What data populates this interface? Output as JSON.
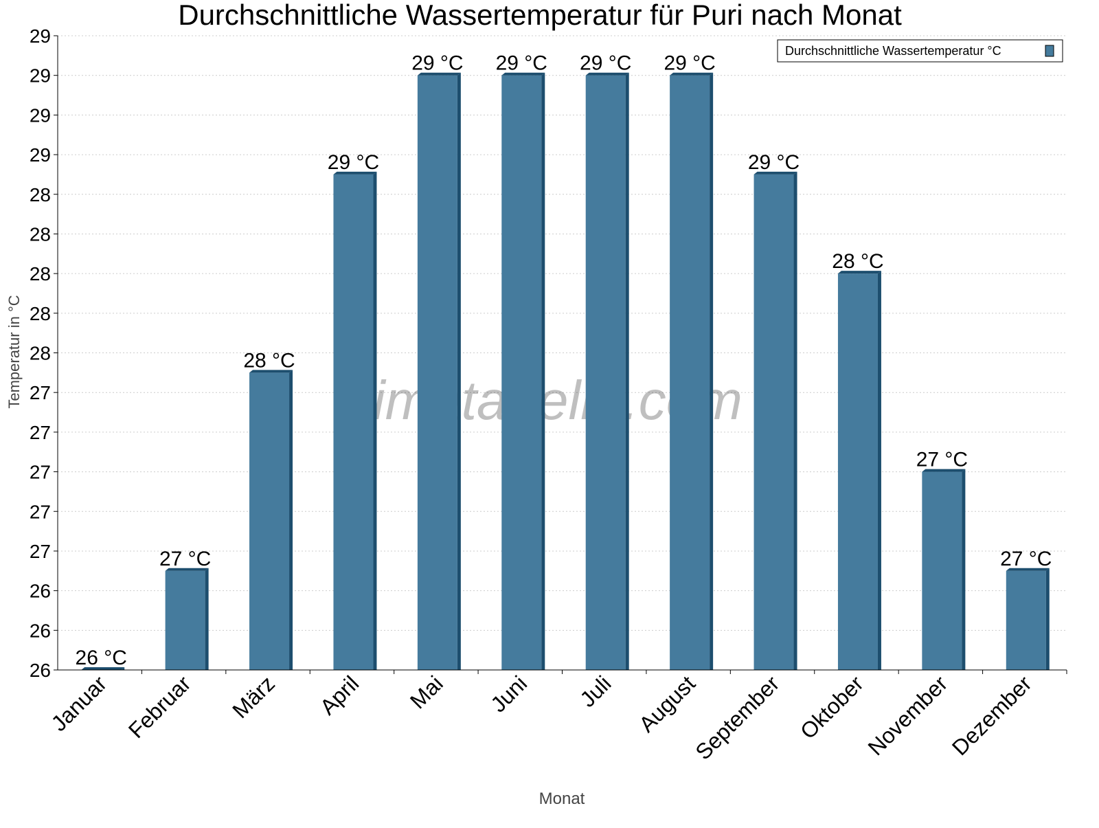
{
  "chart_data": {
    "type": "bar",
    "title": "Durchschnittliche Wassertemperatur für Puri nach Monat",
    "xlabel": "Monat",
    "ylabel": "Temperatur in °C",
    "categories": [
      "Januar",
      "Februar",
      "März",
      "April",
      "Mai",
      "Juni",
      "Juli",
      "August",
      "September",
      "Oktober",
      "November",
      "Dezember"
    ],
    "series": [
      {
        "name": "Durchschnittliche Wassertemperatur °C",
        "values": [
          26.0,
          26.5,
          27.5,
          28.5,
          29.0,
          29.0,
          29.0,
          29.0,
          28.5,
          28.0,
          27.0,
          26.5
        ],
        "labels": [
          "26 °C",
          "27 °C",
          "28 °C",
          "29 °C",
          "29 °C",
          "29 °C",
          "29 °C",
          "29 °C",
          "29 °C",
          "28 °C",
          "27 °C",
          "27 °C"
        ]
      }
    ],
    "ylim": [
      26.0,
      29.2
    ],
    "ytick_step": 0.2,
    "ytick_labels": [
      "26",
      "26",
      "26",
      "27",
      "27",
      "27",
      "27",
      "27",
      "28",
      "28",
      "28",
      "28",
      "28",
      "29",
      "29",
      "29",
      "29"
    ],
    "grid": true,
    "legend": "top-right",
    "colors": {
      "bar": "#457b9d",
      "bar_dark": "#1d4e6e"
    },
    "watermark": "klimatabelle.com"
  }
}
